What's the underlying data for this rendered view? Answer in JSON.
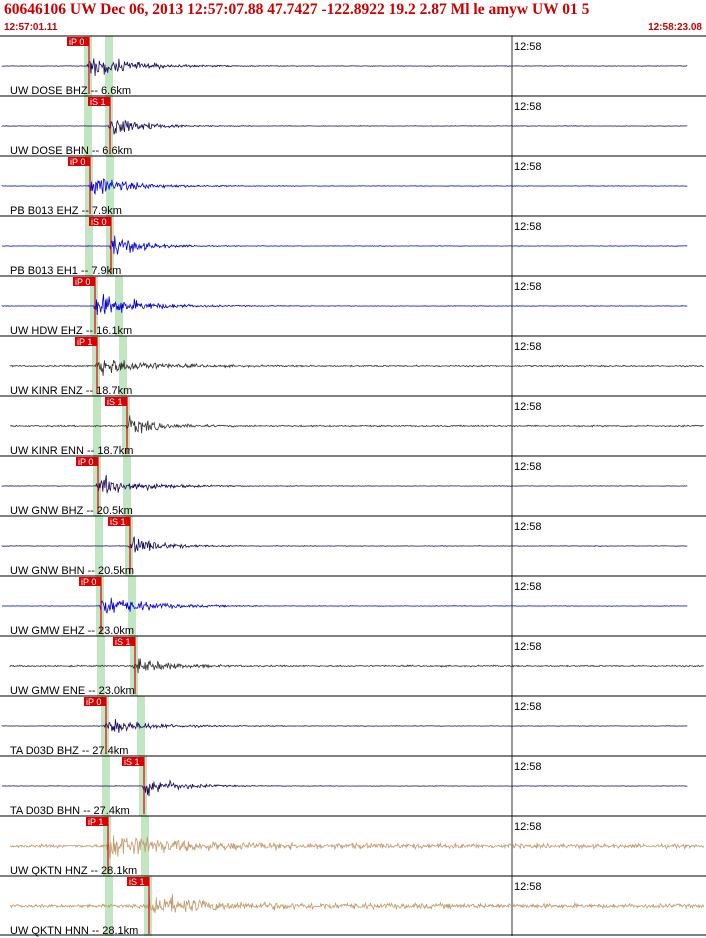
{
  "header": {
    "title": "60646106 UW Dec 06, 2013 12:57:07.88   47.7427 -122.8922 19.2 2.87 Ml le amyw UW 01   5",
    "time_start": "12:57:01.11",
    "time_end": "12:58:23.08"
  },
  "time_tick_label": "12:58",
  "colors": {
    "title_red": "#cc0000",
    "pick_red": "#dd0000",
    "pick_band_green": "#b6e2b6",
    "separator": "#000000"
  },
  "traces": [
    {
      "label": "UW DOSE BHZ -- 6.6km",
      "pick": "iP 0",
      "color": "#1a0a5e",
      "amp": 0.9
    },
    {
      "label": "UW DOSE BHN -- 6.6km",
      "pick": "iS 1",
      "color": "#1a0a5e",
      "amp": 1.0
    },
    {
      "label": "PB B013 EHZ -- 7.9km",
      "pick": "iP 0",
      "color": "#0000dd",
      "amp": 0.8
    },
    {
      "label": "PB B013 EH1 -- 7.9km",
      "pick": "iS 0",
      "color": "#0000dd",
      "amp": 0.9
    },
    {
      "label": "UW HDW EHZ -- 16.1km",
      "pick": "iP 0",
      "color": "#0000dd",
      "amp": 1.0
    },
    {
      "label": "UW KINR ENZ -- 18.7km",
      "pick": "iP 1",
      "color": "#333333",
      "amp": 0.8
    },
    {
      "label": "UW KINR ENN -- 18.7km",
      "pick": "iS 1",
      "color": "#333333",
      "amp": 0.7
    },
    {
      "label": "UW GNW BHZ -- 20.5km",
      "pick": "iP 0",
      "color": "#1a0a5e",
      "amp": 0.8
    },
    {
      "label": "UW GNW BHN -- 20.5km",
      "pick": "iS 1",
      "color": "#1a0a5e",
      "amp": 0.8
    },
    {
      "label": "UW GMW EHZ -- 23.0km",
      "pick": "iP 0",
      "color": "#0000dd",
      "amp": 0.9
    },
    {
      "label": "UW GMW ENE -- 23.0km",
      "pick": "iS 1",
      "color": "#333333",
      "amp": 0.7
    },
    {
      "label": "TA D03D BHZ -- 27.4km",
      "pick": "iP 0",
      "color": "#1a0a5e",
      "amp": 0.6
    },
    {
      "label": "TA D03D BHN -- 27.4km",
      "pick": "iS 1",
      "color": "#1a0a5e",
      "amp": 0.9
    },
    {
      "label": "UW QKTN HNZ -- 28.1km",
      "pick": "iP 1",
      "color": "#c49a6c",
      "amp": 0.8
    },
    {
      "label": "UW QKTN HNN -- 28.1km",
      "pick": "iS 1",
      "color": "#c49a6c",
      "amp": 0.8
    }
  ]
}
